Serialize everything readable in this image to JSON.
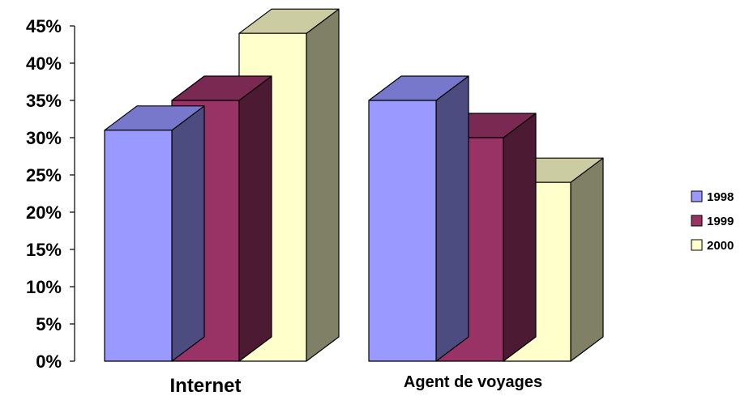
{
  "chart_data": {
    "type": "bar",
    "title": "",
    "xlabel": "",
    "ylabel": "",
    "ylim": [
      0,
      45
    ],
    "y_tick_step": 5,
    "y_tick_suffix": "%",
    "y_ticks": [
      "0%",
      "5%",
      "10%",
      "15%",
      "20%",
      "25%",
      "30%",
      "35%",
      "40%",
      "45%"
    ],
    "categories": [
      "Internet",
      "Agent de voyages"
    ],
    "series": [
      {
        "name": "1998",
        "values": [
          31,
          35
        ],
        "color": "#9999ff",
        "top_color": "#7777cc",
        "side_color": "#4c4c80"
      },
      {
        "name": "1999",
        "values": [
          35,
          30
        ],
        "color": "#993366",
        "top_color": "#7a2952",
        "side_color": "#4d1a33"
      },
      {
        "name": "2000",
        "values": [
          44,
          24
        ],
        "color": "#ffffcc",
        "top_color": "#cccca3",
        "side_color": "#808066"
      }
    ],
    "three_d": true,
    "grid": false,
    "legend_position": "right"
  }
}
